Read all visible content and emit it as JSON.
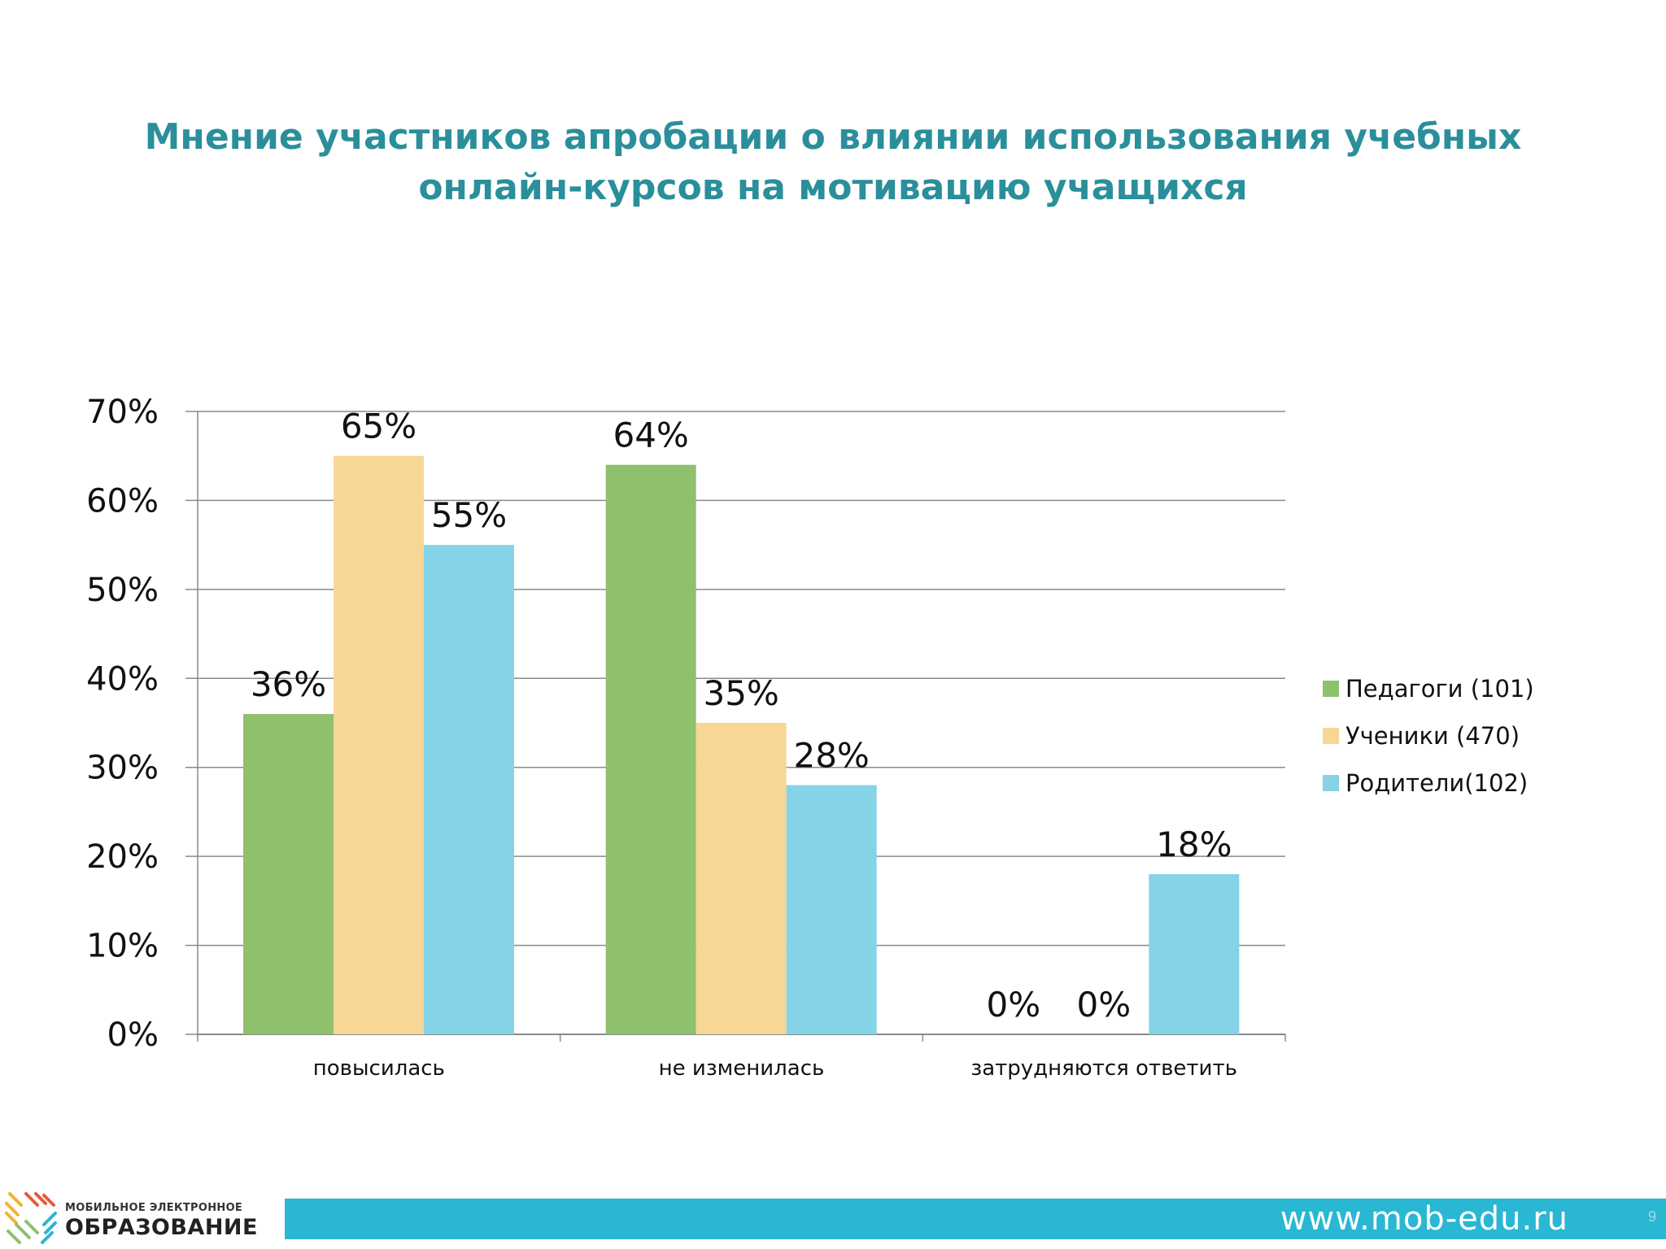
{
  "slide": {
    "title_line1": "Мнение участников апробации о влиянии использования учебных",
    "title_line2": "онлайн-курсов на мотивацию учащихся",
    "footer_url": "www.mob-edu.ru",
    "page_number": "9",
    "logo_line1": "МОБИЛЬНОЕ ЭЛЕКТРОННОЕ",
    "logo_line2": "ОБРАЗОВАНИЕ"
  },
  "colors": {
    "title": "#2a8f9b",
    "footer_bar": "#29b7d3",
    "series": [
      "#8fc06d",
      "#f6d796",
      "#84d3e6"
    ],
    "gridline": "#8a8a8a"
  },
  "chart_data": {
    "type": "bar",
    "categories": [
      "повысилась",
      "не изменилась",
      "затрудняются ответить"
    ],
    "series": [
      {
        "name": "Педагоги (101)",
        "values": [
          36,
          64,
          0
        ],
        "labels": [
          "36%",
          "64%",
          "0%"
        ]
      },
      {
        "name": "Ученики (470)",
        "values": [
          65,
          35,
          0
        ],
        "labels": [
          "65%",
          "35%",
          "0%"
        ]
      },
      {
        "name": "Родители(102)",
        "values": [
          55,
          28,
          18
        ],
        "labels": [
          "55%",
          "28%",
          "18%"
        ]
      }
    ],
    "yticks": [
      "0%",
      "10%",
      "20%",
      "30%",
      "40%",
      "50%",
      "60%",
      "70%"
    ],
    "ylim": [
      0,
      70
    ],
    "grid": true,
    "legend_position": "right"
  }
}
